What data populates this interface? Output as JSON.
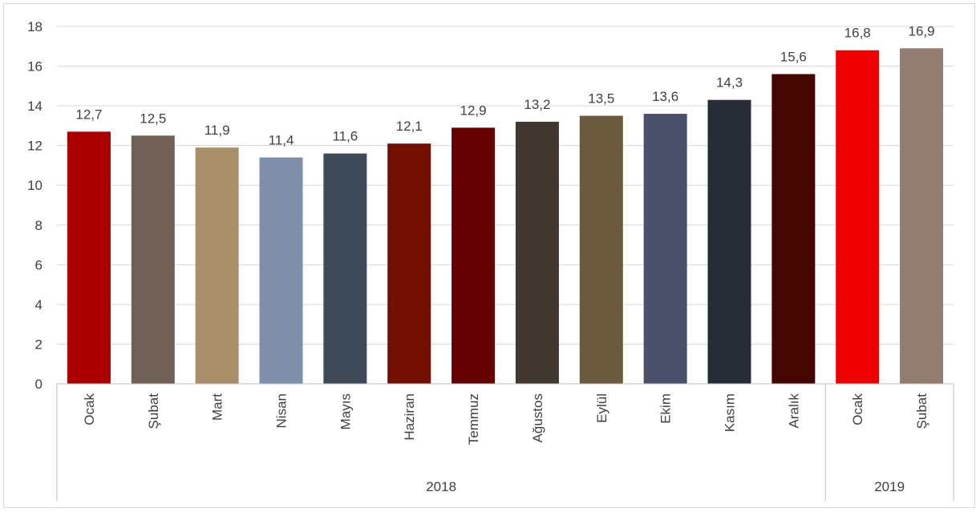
{
  "chart_data": {
    "type": "bar",
    "title": "",
    "xlabel": "",
    "ylabel": "",
    "ylim": [
      0,
      18
    ],
    "yticks": [
      0,
      2,
      4,
      6,
      8,
      10,
      12,
      14,
      16,
      18
    ],
    "grid": true,
    "legend": "none",
    "categories": [
      "Ocak",
      "Şubat",
      "Mart",
      "Nisan",
      "Mayıs",
      "Haziran",
      "Temmuz",
      "Ağustos",
      "Eylül",
      "Ekim",
      "Kasım",
      "Aralık",
      "Ocak",
      "Şubat"
    ],
    "values": [
      12.7,
      12.5,
      11.9,
      11.4,
      11.6,
      12.1,
      12.9,
      13.2,
      13.5,
      13.6,
      14.3,
      15.6,
      16.8,
      16.9
    ],
    "data_labels": [
      "12,7",
      "12,5",
      "11,9",
      "11,4",
      "11,6",
      "12,1",
      "12,9",
      "13,2",
      "13,5",
      "13,6",
      "14,3",
      "15,6",
      "16,8",
      "16,9"
    ],
    "bar_colors": [
      "#ab0000",
      "#6f5f55",
      "#a88f6a",
      "#7f8faa",
      "#3f4a58",
      "#730f00",
      "#650000",
      "#40372f",
      "#6b5a3e",
      "#4a526b",
      "#272d37",
      "#450500",
      "#ee0000",
      "#937c70"
    ],
    "year_groups": [
      {
        "label": "2018",
        "count": 12
      },
      {
        "label": "2019",
        "count": 2
      }
    ]
  }
}
